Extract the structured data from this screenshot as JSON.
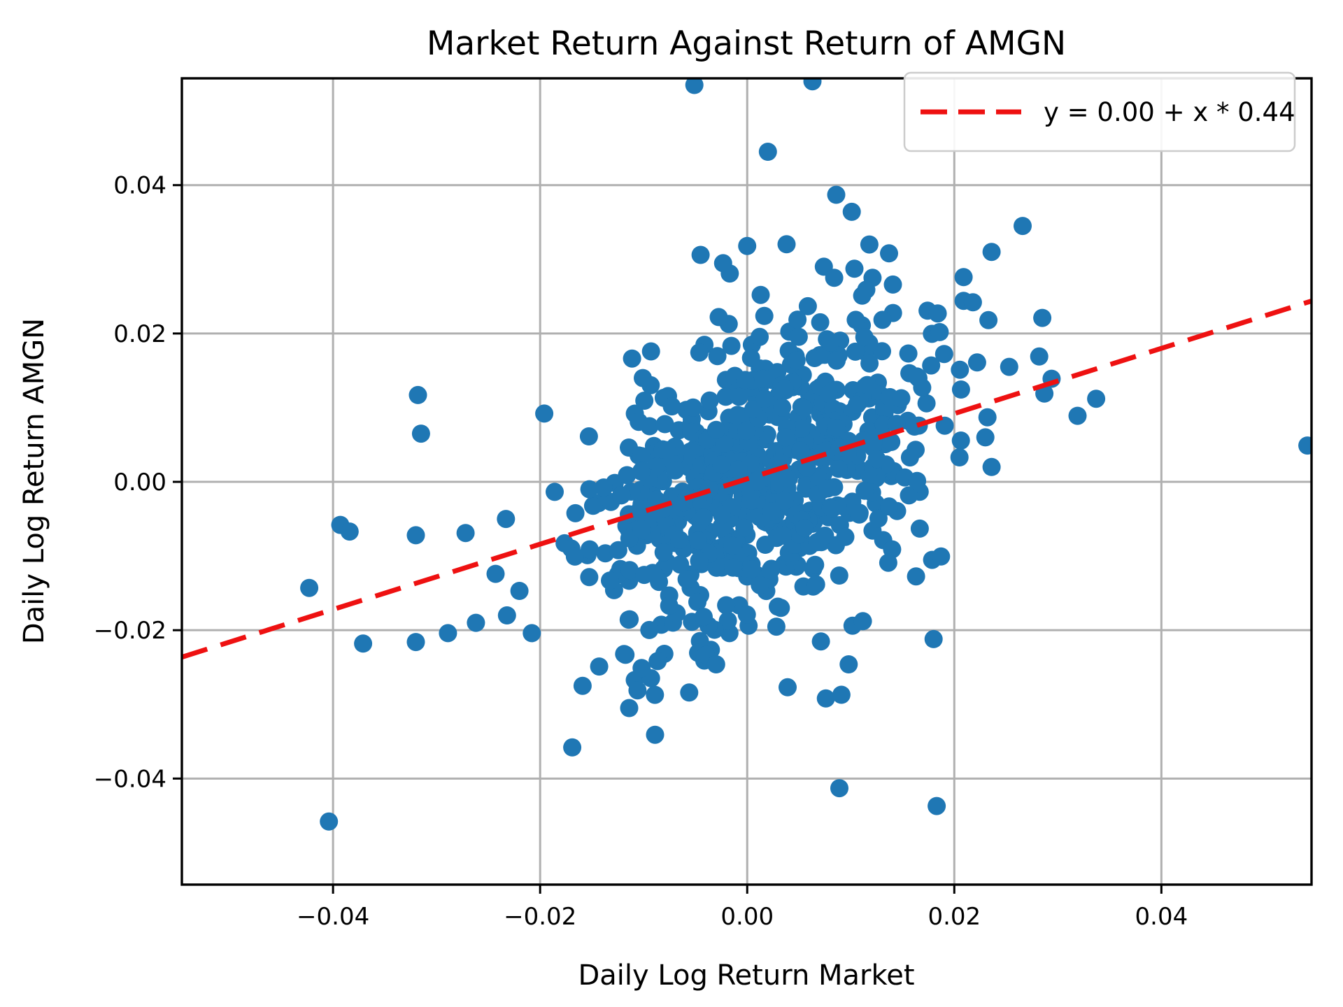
{
  "chart_data": {
    "type": "scatter",
    "title": "Market Return Against Return of AMGN",
    "xlabel": "Daily Log Return Market",
    "ylabel": "Daily Log Return AMGN",
    "xlim": [
      -0.0546,
      0.0545
    ],
    "ylim": [
      -0.0543,
      0.0544
    ],
    "xticks": [
      -0.04,
      -0.02,
      0.0,
      0.02,
      0.04
    ],
    "xtick_labels": [
      "−0.04",
      "−0.02",
      "0.00",
      "0.02",
      "0.04"
    ],
    "yticks": [
      -0.04,
      -0.02,
      0.0,
      0.02,
      0.04
    ],
    "ytick_labels": [
      "−0.04",
      "−0.02",
      "0.00",
      "0.02",
      "0.04"
    ],
    "grid": true,
    "grid_color": "#b0b0b0",
    "marker_color": "#1f77b4",
    "marker_radius_px": 13,
    "n_points_estimate": 740,
    "fit_line": {
      "label": "y = 0.00 + x * 0.44",
      "intercept": 0.0004,
      "slope": 0.44,
      "color": "#ee1111",
      "style": "dashed"
    },
    "legend_position": "upper right",
    "cloud": {
      "comment": "dense correlated cloud of daily returns read from the plot as a distribution",
      "n": 672,
      "seed": 11,
      "mean": [
        0.0008,
        0.0006
      ],
      "std": [
        0.0078,
        0.0103
      ],
      "rho": 0.36,
      "clip_x": 0.0205,
      "clip_y": 0.0315
    },
    "points_outliers": [
      [
        -0.0051,
        0.0535
      ],
      [
        0.0063,
        0.054
      ],
      [
        0.002,
        0.0445
      ],
      [
        0.0086,
        0.0387
      ],
      [
        0.0101,
        0.0364
      ],
      [
        0.0118,
        0.032
      ],
      [
        0.0137,
        0.0308
      ],
      [
        0.0,
        0.0318
      ],
      [
        -0.0045,
        0.0306
      ],
      [
        0.0013,
        0.0252
      ],
      [
        0.0074,
        0.029
      ],
      [
        0.0084,
        0.0275
      ],
      [
        0.0121,
        0.0275
      ],
      [
        0.0115,
        0.0259
      ],
      [
        0.0111,
        0.0251
      ],
      [
        0.0209,
        0.0276
      ],
      [
        0.0209,
        0.0244
      ],
      [
        0.0184,
        0.0227
      ],
      [
        0.0236,
        0.031
      ],
      [
        0.0266,
        0.0345
      ],
      [
        0.0218,
        0.0242
      ],
      [
        0.0233,
        0.0218
      ],
      [
        0.0285,
        0.0221
      ],
      [
        0.0282,
        0.0169
      ],
      [
        0.0253,
        0.0155
      ],
      [
        0.0222,
        0.0161
      ],
      [
        0.0294,
        0.0139
      ],
      [
        0.0287,
        0.0119
      ],
      [
        0.0337,
        0.0112
      ],
      [
        0.0319,
        0.0089
      ],
      [
        0.0232,
        0.0087
      ],
      [
        0.023,
        0.006
      ],
      [
        0.0236,
        0.002
      ],
      [
        0.0205,
        0.0033
      ],
      [
        0.0541,
        0.0049
      ],
      [
        -0.0318,
        0.0117
      ],
      [
        -0.0315,
        0.0065
      ],
      [
        -0.0196,
        0.0092
      ],
      [
        -0.0393,
        -0.0058
      ],
      [
        -0.0423,
        -0.0143
      ],
      [
        -0.0404,
        -0.0458
      ],
      [
        -0.0384,
        -0.0067
      ],
      [
        -0.032,
        -0.0072
      ],
      [
        -0.0272,
        -0.0069
      ],
      [
        -0.0233,
        -0.005
      ],
      [
        -0.0371,
        -0.0218
      ],
      [
        -0.032,
        -0.0216
      ],
      [
        -0.0289,
        -0.0204
      ],
      [
        -0.0262,
        -0.019
      ],
      [
        -0.0232,
        -0.018
      ],
      [
        -0.0208,
        -0.0204
      ],
      [
        -0.0243,
        -0.0124
      ],
      [
        -0.022,
        -0.0147
      ],
      [
        -0.0169,
        -0.0358
      ],
      [
        -0.0089,
        -0.0341
      ],
      [
        -0.0114,
        -0.0305
      ],
      [
        -0.0159,
        -0.0275
      ],
      [
        -0.0056,
        -0.0284
      ],
      [
        -0.0143,
        -0.0249
      ],
      [
        -0.0102,
        -0.0251
      ],
      [
        -0.003,
        -0.0246
      ],
      [
        0.0039,
        -0.0277
      ],
      [
        0.0076,
        -0.0292
      ],
      [
        0.0091,
        -0.0287
      ],
      [
        0.0098,
        -0.0246
      ],
      [
        0.018,
        -0.0212
      ],
      [
        0.0089,
        -0.0413
      ],
      [
        0.0183,
        -0.0437
      ]
    ]
  }
}
